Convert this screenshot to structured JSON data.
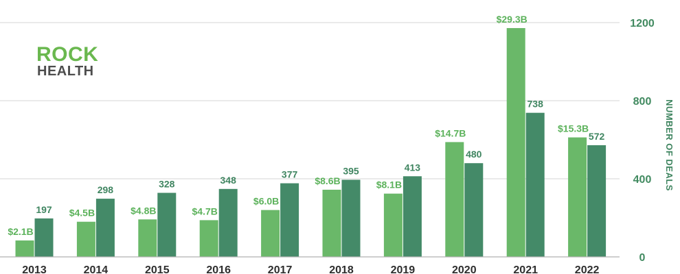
{
  "chart_data": {
    "type": "bar",
    "categories": [
      "2013",
      "2014",
      "2015",
      "2016",
      "2017",
      "2018",
      "2019",
      "2020",
      "2021",
      "2022"
    ],
    "series": [
      {
        "key": "funding",
        "values": [
          2.1,
          4.5,
          4.8,
          4.7,
          6.0,
          8.6,
          8.1,
          14.7,
          29.3,
          15.3
        ],
        "labels": [
          "$2.1B",
          "$4.5B",
          "$4.8B",
          "$4.7B",
          "$6.0B",
          "$8.6B",
          "$8.1B",
          "$14.7B",
          "$29.3B",
          "$15.3B"
        ],
        "scale_note": "0-30B shares axis with 0-1200 deals"
      },
      {
        "key": "deals",
        "values": [
          197,
          298,
          328,
          348,
          377,
          395,
          413,
          480,
          738,
          572
        ],
        "labels": [
          "197",
          "298",
          "328",
          "348",
          "377",
          "395",
          "413",
          "480",
          "738",
          "572"
        ]
      }
    ],
    "ylabel": "NUMBER OF DEALS",
    "y_ticks": [
      "0",
      "400",
      "800",
      "1200"
    ],
    "y_tick_values": [
      0,
      400,
      800,
      1200
    ],
    "ylim": [
      0,
      1200
    ],
    "funding_ylim": [
      0,
      30
    ],
    "grid": true,
    "y_axis_side": "right",
    "colors": {
      "funding": "#6ab869",
      "deals": "#448a68",
      "funding_text": "#5cb25b",
      "deals_text": "#3f8560",
      "grid": "#d4d4d4"
    }
  },
  "logo": {
    "line1": "ROCK",
    "line2": "HEALTH"
  }
}
